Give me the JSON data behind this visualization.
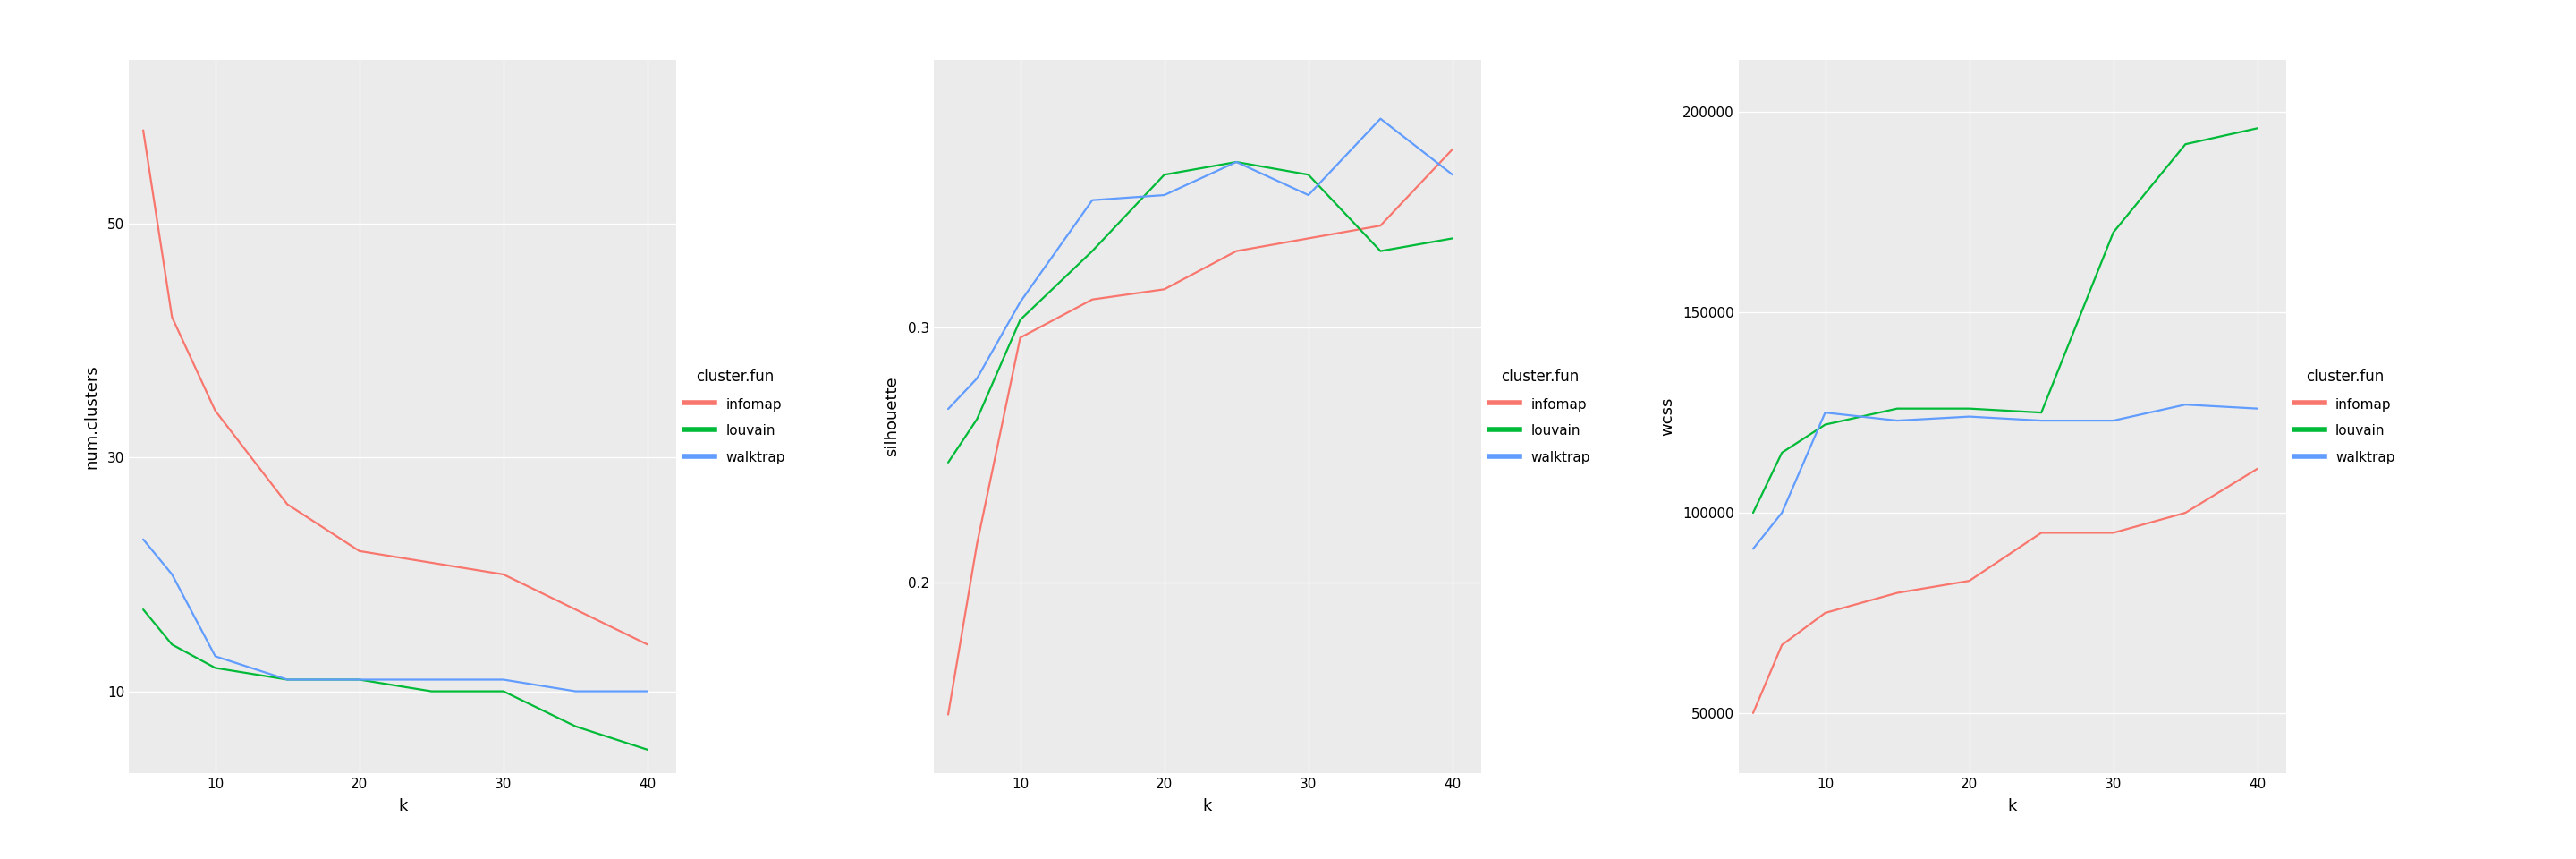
{
  "k": [
    5,
    7,
    10,
    15,
    20,
    25,
    30,
    35,
    40
  ],
  "plot1": {
    "ylabel": "num.clusters",
    "xlabel": "k",
    "infomap": [
      58,
      42,
      34,
      26,
      22,
      21,
      20,
      17,
      14
    ],
    "louvain": [
      17,
      14,
      12,
      11,
      11,
      10,
      10,
      7,
      5
    ],
    "walktrap": [
      23,
      20,
      13,
      11,
      11,
      11,
      11,
      10,
      10
    ],
    "yticks": [
      10,
      30,
      50
    ],
    "ylim": [
      3,
      64
    ]
  },
  "plot2": {
    "ylabel": "silhouette",
    "xlabel": "k",
    "infomap": [
      0.148,
      0.215,
      0.296,
      0.311,
      0.315,
      0.33,
      0.335,
      0.34,
      0.37
    ],
    "louvain": [
      0.247,
      0.264,
      0.303,
      0.33,
      0.36,
      0.365,
      0.36,
      0.33,
      0.335
    ],
    "walktrap": [
      0.268,
      0.28,
      0.31,
      0.35,
      0.352,
      0.365,
      0.352,
      0.382,
      0.36
    ],
    "yticks": [
      0.2,
      0.3
    ],
    "ylim": [
      0.125,
      0.405
    ]
  },
  "plot3": {
    "ylabel": "wcss",
    "xlabel": "k",
    "infomap": [
      50000,
      67000,
      75000,
      80000,
      83000,
      95000,
      95000,
      100000,
      111000
    ],
    "louvain": [
      100000,
      115000,
      122000,
      126000,
      126000,
      125000,
      170000,
      192000,
      196000
    ],
    "walktrap": [
      91000,
      100000,
      125000,
      123000,
      124000,
      123000,
      123000,
      127000,
      126000
    ],
    "yticks": [
      50000,
      100000,
      150000,
      200000
    ],
    "ylim": [
      35000,
      213000
    ]
  },
  "colors": {
    "infomap": "#F8766D",
    "louvain": "#00BA38",
    "walktrap": "#619CFF"
  },
  "bg_color": "#EBEBEB",
  "grid_color": "#FFFFFF",
  "legend_title": "cluster.fun",
  "line_width": 1.6,
  "tick_labelsize": 11,
  "axis_labelsize": 13
}
